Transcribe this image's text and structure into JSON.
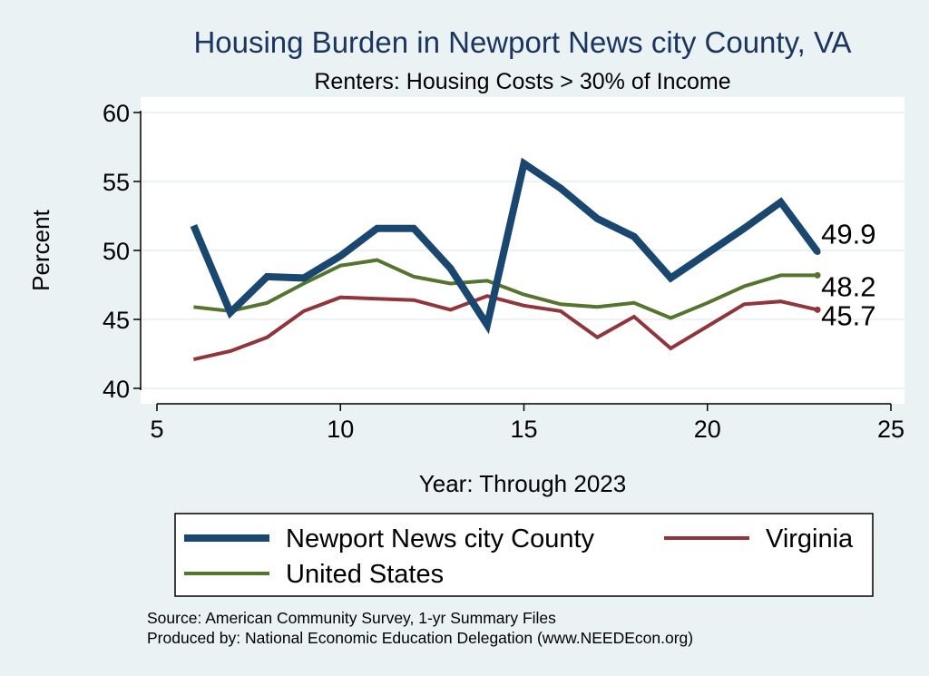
{
  "chart_data": {
    "type": "line",
    "title": "Housing Burden in Newport News city County, VA",
    "subtitle": "Renters: Housing Costs > 30% of Income",
    "xlabel": "Year: Through 2023",
    "ylabel": "Percent",
    "xlim": [
      5,
      25
    ],
    "ylim": [
      40,
      60
    ],
    "x_ticks": [
      5,
      10,
      15,
      20,
      25
    ],
    "y_ticks": [
      40,
      45,
      50,
      55,
      60
    ],
    "grid": true,
    "legend_position": "bottom",
    "x": [
      6,
      7,
      8,
      9,
      10,
      11,
      12,
      13,
      14,
      15,
      16,
      17,
      18,
      19,
      20,
      21,
      22,
      23
    ],
    "series": [
      {
        "name": "Newport News city County",
        "color": "#1a476f",
        "values": [
          51.8,
          45.5,
          48.1,
          48.0,
          49.6,
          51.6,
          51.6,
          48.7,
          44.6,
          56.3,
          54.5,
          52.3,
          51.0,
          48.0,
          49.8,
          51.6,
          53.5,
          49.9
        ],
        "end_label": "49.9"
      },
      {
        "name": "Virginia",
        "color": "#90353b",
        "values": [
          42.1,
          42.7,
          43.7,
          45.6,
          46.6,
          46.5,
          46.4,
          45.7,
          46.7,
          46.0,
          45.6,
          43.7,
          45.2,
          42.9,
          44.5,
          46.1,
          46.3,
          45.7
        ],
        "end_label": "45.7"
      },
      {
        "name": "United States",
        "color": "#55752f",
        "values": [
          45.9,
          45.6,
          46.2,
          47.6,
          48.9,
          49.3,
          48.1,
          47.6,
          47.8,
          46.8,
          46.1,
          45.9,
          46.2,
          45.1,
          46.2,
          47.4,
          48.2,
          48.2
        ],
        "end_label": "48.2"
      }
    ],
    "source_note": "Source: American Community Survey, 1-yr Summary Files",
    "producer_note": "Produced by: National Economic Education Delegation (www.NEEDEcon.org)"
  }
}
